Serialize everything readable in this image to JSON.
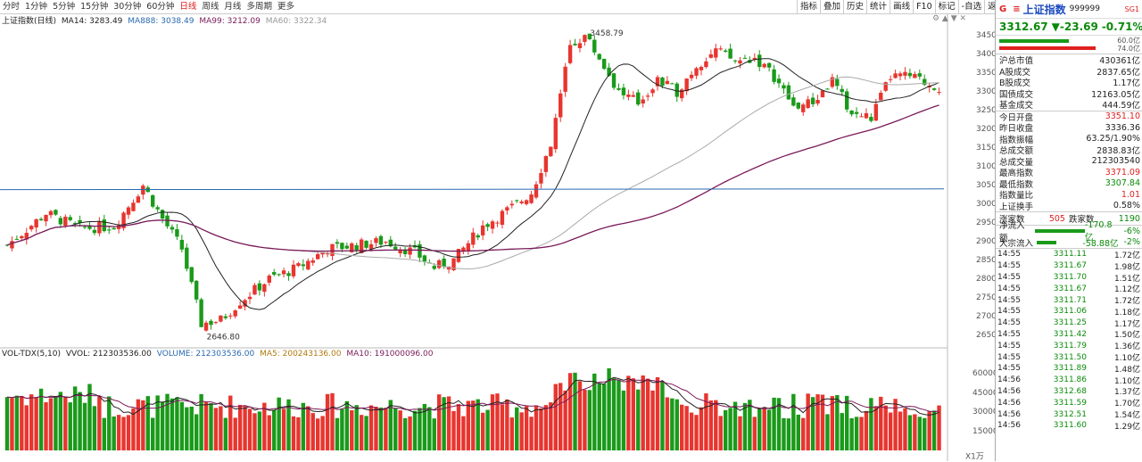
{
  "periods": [
    {
      "label": "分时",
      "active": false
    },
    {
      "label": "1分钟",
      "active": false
    },
    {
      "label": "5分钟",
      "active": false
    },
    {
      "label": "15分钟",
      "active": false
    },
    {
      "label": "30分钟",
      "active": false
    },
    {
      "label": "60分钟",
      "active": false
    },
    {
      "label": "日线",
      "active": true
    },
    {
      "label": "周线",
      "active": false
    },
    {
      "label": "月线",
      "active": false
    },
    {
      "label": "多周期",
      "active": false
    },
    {
      "label": "更多",
      "active": false
    }
  ],
  "tools": [
    "指标",
    "叠加",
    "历史",
    "统计",
    "画线",
    "F10",
    "标记",
    "-自选",
    "返回"
  ],
  "legend": {
    "title": "上证指数(日线)",
    "ma14": "MA14: 3283.49",
    "ma888": "MA888: 3038.49",
    "ma99": "MA99: 3212.09",
    "ma60": "MA60: 3322.34"
  },
  "vol_legend": {
    "name": "VOL-TDX(5,10)",
    "vvol": "VVOL: 212303536.00",
    "volume": "VOLUME: 212303536.00",
    "ma5": "MA5: 200243136.00",
    "ma10": "MA10: 191000096.00"
  },
  "price_axis": [
    "3450",
    "3400",
    "3350",
    "3300",
    "3250",
    "3200",
    "3150",
    "3100",
    "3050",
    "3000",
    "2950",
    "2900",
    "2850",
    "2800",
    "2750",
    "2700",
    "2650"
  ],
  "vol_axis": [
    "60000",
    "45000",
    "30000",
    "15000"
  ],
  "vol_unit": "X1万",
  "annotations": {
    "high": "3458.79",
    "low": "2646.80"
  },
  "chart_data": {
    "type": "candlestick",
    "series_ohlc_note": "daily candles, index points",
    "ylim": [
      2630,
      3480
    ],
    "vol_ylim": [
      0,
      70000
    ]
  },
  "colors": {
    "up": "#e8352f",
    "down": "#1a9a1a",
    "ma_black": "#222222",
    "ma_purple": "#7a1a5a",
    "ma_grey": "#aaaaaa",
    "ma_blue": "#2a6ab0"
  },
  "panel": {
    "flag": "G",
    "name": "上证指数",
    "code": "999999",
    "signal": "SG1",
    "price": "3312.67",
    "change": "▼-23.69",
    "pct": "-0.71%",
    "bar_label_1": "60.0亿",
    "bar_label_2": "74.0亿",
    "stats": [
      {
        "k": "沪总市值",
        "v": "430361亿",
        "c": ""
      },
      {
        "k": "A股成交",
        "v": "2837.65亿",
        "c": ""
      },
      {
        "k": "B股成交",
        "v": "1.17亿",
        "c": ""
      },
      {
        "k": "国债成交",
        "v": "12163.05亿",
        "c": ""
      },
      {
        "k": "基金成交",
        "v": "444.59亿",
        "c": ""
      }
    ],
    "stats2": [
      {
        "k": "今日开盘",
        "v": "3351.10",
        "c": "red"
      },
      {
        "k": "昨日收盘",
        "v": "3336.36",
        "c": ""
      },
      {
        "k": "指数振幅",
        "v": "63.25/1.90%",
        "c": ""
      },
      {
        "k": "总成交额",
        "v": "2838.83亿",
        "c": ""
      },
      {
        "k": "总成交量",
        "v": "212303540",
        "c": ""
      },
      {
        "k": "最高指数",
        "v": "3371.09",
        "c": "red"
      },
      {
        "k": "最低指数",
        "v": "3307.84",
        "c": "green"
      },
      {
        "k": "指数量比",
        "v": "1.01",
        "c": "red"
      },
      {
        "k": "上证换手",
        "v": "0.58%",
        "c": ""
      }
    ],
    "rise_label": "涨家数",
    "rise": "505",
    "fall_label": "跌家数",
    "fall": "1190",
    "flows": [
      {
        "k": "净流入额",
        "v": "-170.8亿",
        "p": "-6%"
      },
      {
        "k": "大宗流入",
        "v": "-58.88亿",
        "p": "-2%"
      }
    ],
    "ticks": [
      {
        "t": "14:55",
        "p": "3311.11",
        "v": "1.72亿"
      },
      {
        "t": "14:55",
        "p": "3311.67",
        "v": "1.98亿"
      },
      {
        "t": "14:55",
        "p": "3311.70",
        "v": "1.51亿"
      },
      {
        "t": "14:55",
        "p": "3311.67",
        "v": "1.12亿"
      },
      {
        "t": "14:55",
        "p": "3311.71",
        "v": "1.72亿"
      },
      {
        "t": "14:55",
        "p": "3311.06",
        "v": "1.18亿"
      },
      {
        "t": "14:55",
        "p": "3311.25",
        "v": "1.17亿"
      },
      {
        "t": "14:55",
        "p": "3311.42",
        "v": "1.50亿"
      },
      {
        "t": "14:55",
        "p": "3311.79",
        "v": "1.36亿"
      },
      {
        "t": "14:55",
        "p": "3311.50",
        "v": "1.10亿"
      },
      {
        "t": "14:55",
        "p": "3311.89",
        "v": "1.48亿"
      },
      {
        "t": "14:56",
        "p": "3311.86",
        "v": "1.10亿"
      },
      {
        "t": "14:56",
        "p": "3312.68",
        "v": "1.37亿"
      },
      {
        "t": "14:56",
        "p": "3311.59",
        "v": "1.70亿"
      },
      {
        "t": "14:56",
        "p": "3312.51",
        "v": "1.54亿"
      },
      {
        "t": "14:56",
        "p": "3311.60",
        "v": "1.29亿"
      }
    ]
  }
}
